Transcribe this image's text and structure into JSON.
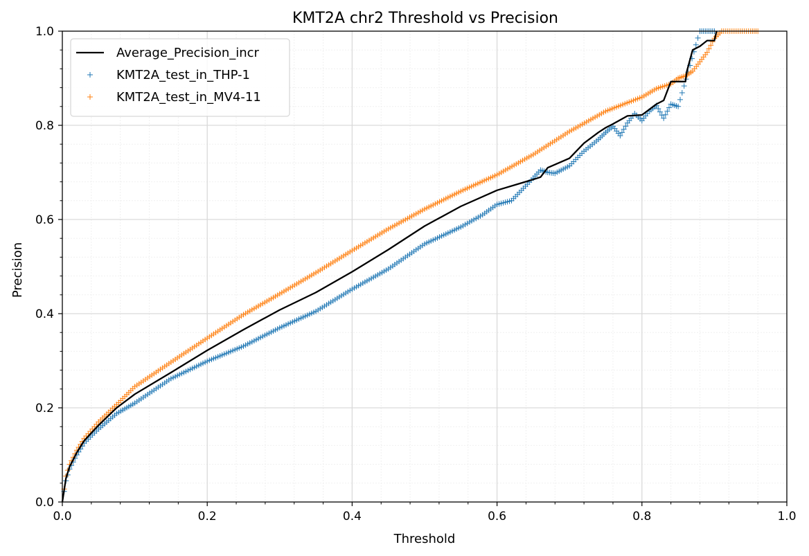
{
  "chart_data": {
    "type": "line",
    "title": "KMT2A chr2 Threshold vs Precision",
    "xlabel": "Threshold",
    "ylabel": "Precision",
    "xlim": [
      0.0,
      1.0
    ],
    "ylim": [
      0.0,
      1.0
    ],
    "xticks": [
      "0.0",
      "0.2",
      "0.4",
      "0.6",
      "0.8",
      "1.0"
    ],
    "yticks": [
      "0.0",
      "0.2",
      "0.4",
      "0.6",
      "0.8",
      "1.0"
    ],
    "grid": true,
    "minor_grid": true,
    "legend_position": "top-left",
    "series": [
      {
        "name": "Average_Precision_incr",
        "style": "line",
        "color": "#000000",
        "x": [
          0.0,
          0.005,
          0.01,
          0.02,
          0.03,
          0.05,
          0.075,
          0.1,
          0.15,
          0.2,
          0.25,
          0.3,
          0.35,
          0.4,
          0.45,
          0.5,
          0.55,
          0.6,
          0.65,
          0.66,
          0.67,
          0.7,
          0.72,
          0.74,
          0.75,
          0.76,
          0.78,
          0.8,
          0.82,
          0.83,
          0.84,
          0.86,
          0.862,
          0.87,
          0.88,
          0.89,
          0.9,
          0.903
        ],
        "values": [
          0.0,
          0.05,
          0.075,
          0.105,
          0.13,
          0.163,
          0.2,
          0.229,
          0.275,
          0.322,
          0.366,
          0.408,
          0.445,
          0.489,
          0.536,
          0.586,
          0.628,
          0.662,
          0.685,
          0.69,
          0.71,
          0.73,
          0.762,
          0.785,
          0.795,
          0.803,
          0.82,
          0.822,
          0.845,
          0.853,
          0.893,
          0.893,
          0.915,
          0.96,
          0.968,
          0.98,
          0.98,
          1.0
        ]
      },
      {
        "name": "KMT2A_test_in_THP-1",
        "style": "marker",
        "marker": "+",
        "color": "#1f77b4",
        "x": [
          0.0,
          0.005,
          0.01,
          0.02,
          0.03,
          0.05,
          0.075,
          0.1,
          0.15,
          0.2,
          0.25,
          0.3,
          0.35,
          0.4,
          0.45,
          0.5,
          0.55,
          0.58,
          0.6,
          0.62,
          0.65,
          0.66,
          0.67,
          0.68,
          0.7,
          0.72,
          0.74,
          0.75,
          0.76,
          0.77,
          0.78,
          0.79,
          0.8,
          0.81,
          0.82,
          0.83,
          0.84,
          0.85,
          0.88,
          0.89,
          0.9
        ],
        "values": [
          0.0,
          0.045,
          0.07,
          0.1,
          0.125,
          0.155,
          0.188,
          0.21,
          0.262,
          0.299,
          0.331,
          0.37,
          0.405,
          0.452,
          0.495,
          0.548,
          0.584,
          0.61,
          0.632,
          0.64,
          0.688,
          0.705,
          0.7,
          0.698,
          0.714,
          0.745,
          0.77,
          0.785,
          0.798,
          0.778,
          0.805,
          0.825,
          0.81,
          0.83,
          0.842,
          0.815,
          0.845,
          0.84,
          1.0,
          1.0,
          1.0
        ]
      },
      {
        "name": "KMT2A_test_in_MV4-11",
        "style": "marker",
        "marker": "+",
        "color": "#ff7f0e",
        "x": [
          0.0,
          0.005,
          0.01,
          0.02,
          0.03,
          0.05,
          0.075,
          0.1,
          0.15,
          0.2,
          0.25,
          0.3,
          0.35,
          0.4,
          0.45,
          0.5,
          0.55,
          0.6,
          0.65,
          0.7,
          0.75,
          0.8,
          0.82,
          0.84,
          0.85,
          0.86,
          0.87,
          0.88,
          0.89,
          0.9,
          0.91,
          0.93,
          0.95,
          0.96
        ],
        "values": [
          0.0,
          0.055,
          0.08,
          0.11,
          0.135,
          0.17,
          0.207,
          0.245,
          0.297,
          0.348,
          0.398,
          0.442,
          0.487,
          0.534,
          0.58,
          0.622,
          0.66,
          0.695,
          0.738,
          0.787,
          0.83,
          0.86,
          0.878,
          0.888,
          0.9,
          0.905,
          0.915,
          0.935,
          0.955,
          0.985,
          1.0,
          1.0,
          1.0,
          1.0
        ]
      }
    ]
  }
}
